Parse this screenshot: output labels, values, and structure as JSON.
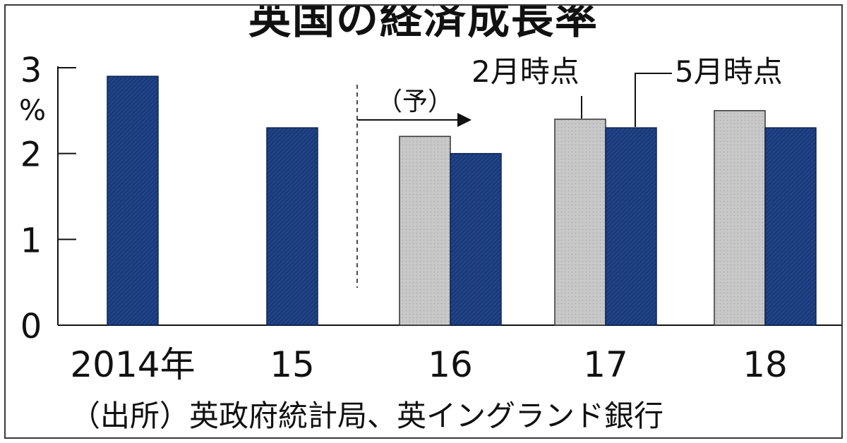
{
  "chart_data": {
    "type": "bar",
    "title": "英国の経済成長率",
    "ylabel": "%",
    "ylim": [
      0,
      3
    ],
    "yticks": [
      "0",
      "1",
      "2",
      "3"
    ],
    "categories": [
      "2014年",
      "15",
      "16",
      "17",
      "18"
    ],
    "series": [
      {
        "name": "2月時点",
        "values": [
          null,
          null,
          2.2,
          2.4,
          2.5
        ],
        "color": "#c4c4c4"
      },
      {
        "name": "5月時点",
        "values": [
          2.9,
          2.3,
          2.0,
          2.3,
          2.3
        ],
        "color": "#1a3a7a"
      }
    ],
    "forecast_label": "（予）",
    "source": "（出所）英政府統計局、英イングランド銀行",
    "grid": false
  }
}
